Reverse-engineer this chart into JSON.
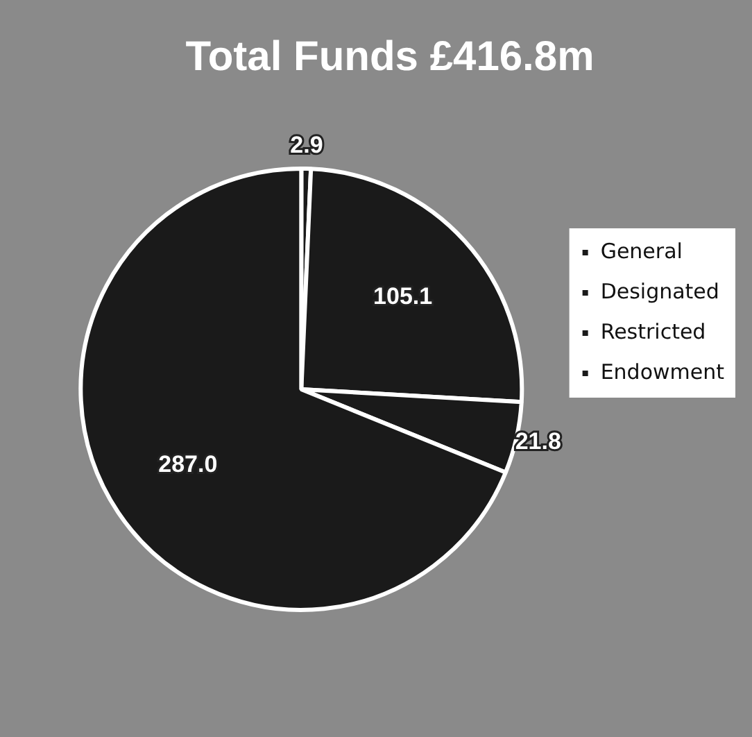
{
  "chart_data": {
    "type": "pie",
    "title": "Total Funds £416.8m",
    "categories": [
      "General",
      "Designated",
      "Restricted",
      "Endowment"
    ],
    "values": [
      2.9,
      105.1,
      21.8,
      287.0
    ],
    "colors": [
      "#1a1a1a",
      "#1a1a1a",
      "#1a1a1a",
      "#1a1a1a"
    ],
    "value_labels": [
      "2.9",
      "105.1",
      "21.8",
      "287.0"
    ],
    "legend": "right"
  }
}
